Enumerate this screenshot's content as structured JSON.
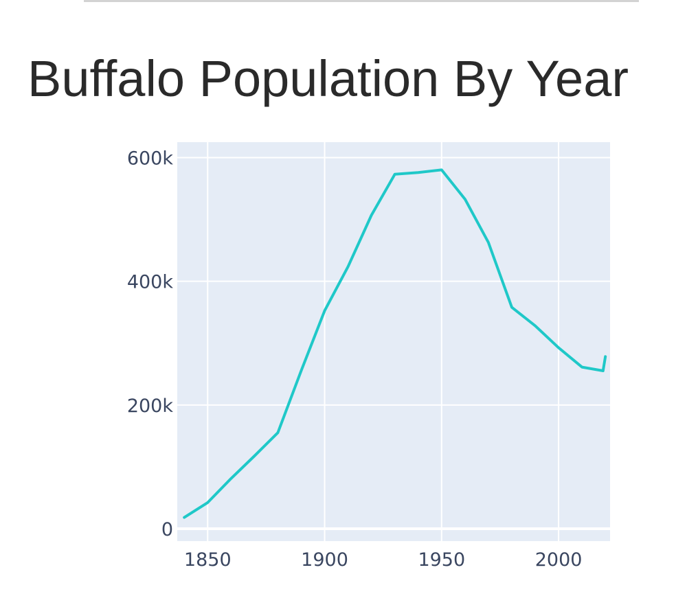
{
  "title": "Buffalo Population By Year",
  "chart_data": {
    "type": "line",
    "title": "Buffalo Population By Year",
    "xlabel": "",
    "ylabel": "",
    "x": [
      1840,
      1850,
      1860,
      1870,
      1880,
      1890,
      1900,
      1910,
      1920,
      1930,
      1940,
      1950,
      1960,
      1970,
      1980,
      1990,
      2000,
      2010,
      2019,
      2020
    ],
    "values": [
      18213,
      42261,
      81129,
      117714,
      155134,
      255664,
      352387,
      423715,
      506775,
      573076,
      575901,
      580132,
      532759,
      462768,
      357870,
      328123,
      292648,
      261310,
      255284,
      278349
    ],
    "xlim": [
      1837,
      2022
    ],
    "ylim": [
      -20000,
      625000
    ],
    "xticks": [
      1850,
      1900,
      1950,
      2000
    ],
    "xtick_labels": [
      "1850",
      "1900",
      "1950",
      "2000"
    ],
    "yticks": [
      0,
      200000,
      400000,
      600000
    ],
    "ytick_labels": [
      "0",
      "200k",
      "400k",
      "600k"
    ],
    "grid": true,
    "legend": "none",
    "colors": {
      "line": "#1fc8c8",
      "plot_bg": "#e5ecf6",
      "grid": "#ffffff"
    }
  }
}
